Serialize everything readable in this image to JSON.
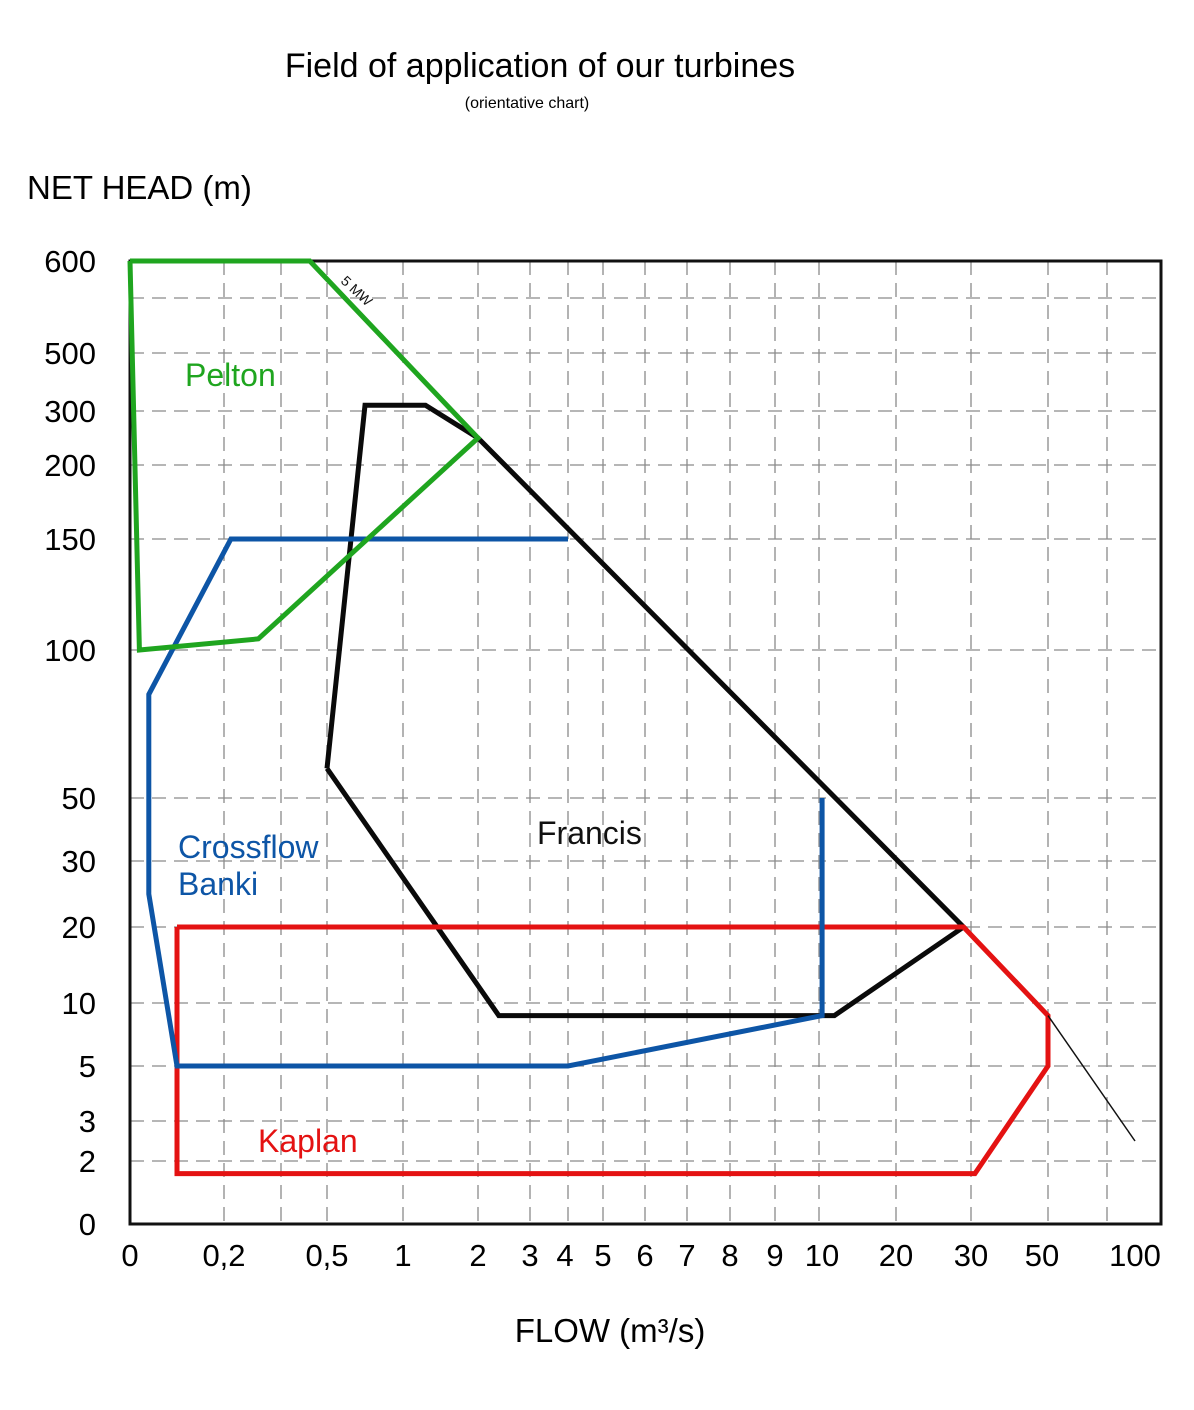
{
  "chart_data": {
    "type": "area",
    "title": "Field of application of our turbines",
    "subtitle": "(orientative chart)",
    "xlabel": "FLOW  (m³/s)",
    "ylabel": "NET HEAD  (m)",
    "x_scale": "nonlinear (positions set by printed tick labels)",
    "y_scale": "nonlinear (positions set by printed tick labels)",
    "grid": true,
    "grid_style": "dashed",
    "x_ticks": [
      "0",
      "0,2",
      "0,5",
      "1",
      "2",
      "3",
      "4",
      "5",
      "6",
      "7",
      "8",
      "9",
      "10",
      "20",
      "30",
      "50",
      "100"
    ],
    "y_ticks": [
      "0",
      "2",
      "3",
      "5",
      "10",
      "20",
      "30",
      "50",
      "100",
      "150",
      "200",
      "300",
      "500",
      "600"
    ],
    "series": [
      {
        "name": "Pelton",
        "color": "#1fa51f",
        "points": [
          [
            0,
            600
          ],
          [
            0.02,
            100
          ],
          [
            0.3,
            105
          ],
          [
            2,
            250
          ],
          [
            0.45,
            600
          ],
          [
            0,
            600
          ]
        ]
      },
      {
        "name": "Crossflow Banki",
        "color": "#0d55a6",
        "points": [
          [
            0.22,
            150
          ],
          [
            4,
            150
          ],
          [
            4,
            150
          ],
          [
            0.22,
            150
          ],
          [
            0.04,
            85
          ],
          [
            0.04,
            25
          ],
          [
            0.1,
            5
          ],
          [
            4,
            5
          ],
          [
            10.4,
            9
          ],
          [
            10.4,
            50
          ]
        ]
      },
      {
        "name": "Francis",
        "color": "#0a0a0a",
        "points": [
          [
            0.5,
            60
          ],
          [
            0.75,
            320
          ],
          [
            1.3,
            320
          ],
          [
            2,
            250
          ],
          [
            29,
            20
          ],
          [
            12,
            9
          ],
          [
            2.4,
            9
          ],
          [
            0.5,
            60
          ]
        ]
      },
      {
        "name": "Kaplan",
        "color": "#e41212",
        "points": [
          [
            0.1,
            20
          ],
          [
            29,
            20
          ],
          [
            50,
            9
          ],
          [
            50,
            5
          ],
          [
            31,
            1.6
          ],
          [
            0.1,
            1.6
          ],
          [
            0.1,
            20
          ]
        ]
      }
    ],
    "annotations": [
      {
        "text": "5 MW",
        "line": [
          [
            0.45,
            600
          ],
          [
            2,
            250
          ]
        ]
      }
    ],
    "extension_line": [
      [
        50,
        9
      ],
      [
        100,
        2.5
      ]
    ]
  }
}
